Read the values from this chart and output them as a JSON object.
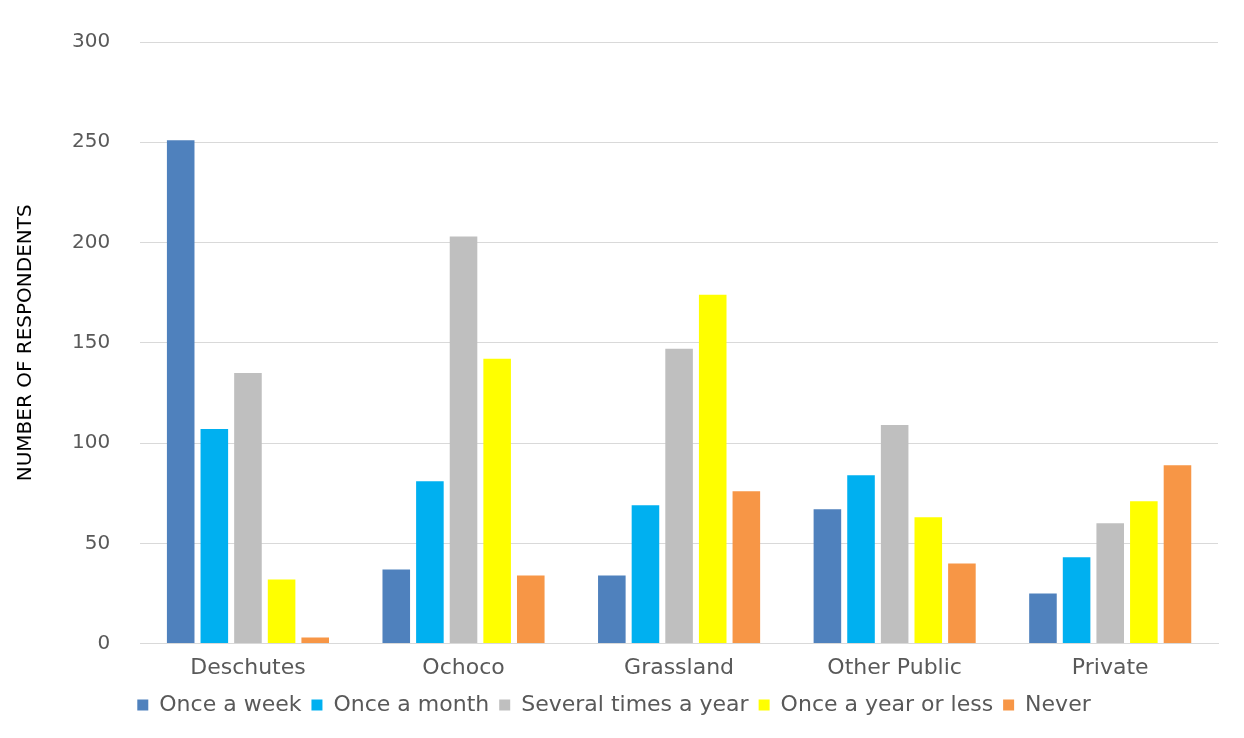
{
  "chart_data": {
    "type": "bar",
    "ylabel": "NUMBER OF RESPONDENTS",
    "categories": [
      "Deschutes",
      "Ochoco",
      "Grassland",
      "Other Public",
      "Private"
    ],
    "series": [
      {
        "name": "Once a week",
        "color": "#4f81bd",
        "values": [
          251,
          37,
          34,
          67,
          25
        ]
      },
      {
        "name": "Once a month",
        "color": "#00b0f0",
        "values": [
          107,
          81,
          69,
          84,
          43
        ]
      },
      {
        "name": "Several times a year",
        "color": "#bfbfbf",
        "values": [
          135,
          203,
          147,
          109,
          60
        ]
      },
      {
        "name": "Once a year or less",
        "color": "#ffff00",
        "values": [
          32,
          142,
          174,
          63,
          71
        ]
      },
      {
        "name": "Never",
        "color": "#f79646",
        "values": [
          3,
          34,
          76,
          40,
          89
        ]
      }
    ],
    "ylim": [
      0,
      300
    ],
    "yticks": [
      0,
      50,
      100,
      150,
      200,
      250,
      300
    ],
    "grid": "y",
    "legend": "bottom"
  }
}
